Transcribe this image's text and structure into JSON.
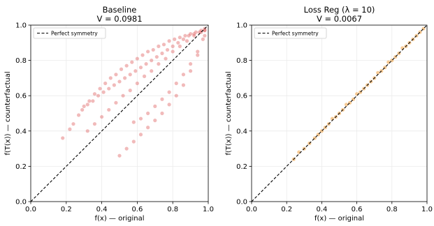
{
  "chart_data": [
    {
      "type": "scatter",
      "title": "Baseline",
      "subtitle": "V = 0.0981",
      "xlabel": "f(x)  — original",
      "ylabel": "f(T(x))  — counterfactual",
      "xlim": [
        0.0,
        1.0
      ],
      "ylim": [
        0.0,
        1.0
      ],
      "xticks": [
        "0.0",
        "0.2",
        "0.4",
        "0.6",
        "0.8",
        "1.0"
      ],
      "yticks": [
        "0.0",
        "0.2",
        "0.4",
        "0.6",
        "0.8",
        "1.0"
      ],
      "grid": true,
      "legend": {
        "position": "top-left",
        "entries": [
          "Perfect symmetry"
        ]
      },
      "reference_line": {
        "name": "Perfect symmetry",
        "style": "dashed",
        "color": "#000000",
        "x": [
          0,
          1
        ],
        "y": [
          0,
          1
        ]
      },
      "point_color": "#e06666",
      "series": [
        {
          "x": [
            0.18,
            0.22,
            0.24,
            0.27,
            0.3,
            0.33,
            0.36,
            0.39,
            0.42,
            0.45,
            0.48,
            0.51,
            0.54,
            0.57,
            0.6,
            0.63,
            0.66,
            0.69,
            0.72,
            0.75,
            0.78,
            0.81,
            0.84,
            0.87,
            0.9,
            0.93,
            0.96,
            0.98
          ],
          "y": [
            0.36,
            0.41,
            0.44,
            0.49,
            0.54,
            0.57,
            0.61,
            0.64,
            0.67,
            0.7,
            0.72,
            0.75,
            0.77,
            0.79,
            0.81,
            0.83,
            0.85,
            0.86,
            0.88,
            0.89,
            0.91,
            0.92,
            0.93,
            0.94,
            0.95,
            0.96,
            0.97,
            0.98
          ]
        },
        {
          "x": [
            0.29,
            0.32,
            0.35,
            0.38,
            0.41,
            0.44,
            0.47,
            0.5,
            0.53,
            0.56,
            0.59,
            0.62,
            0.65,
            0.68,
            0.71,
            0.74,
            0.77,
            0.8,
            0.83,
            0.86,
            0.89,
            0.92,
            0.95,
            0.98
          ],
          "y": [
            0.52,
            0.55,
            0.57,
            0.6,
            0.62,
            0.64,
            0.66,
            0.68,
            0.7,
            0.72,
            0.74,
            0.76,
            0.78,
            0.8,
            0.82,
            0.84,
            0.86,
            0.88,
            0.9,
            0.92,
            0.94,
            0.95,
            0.96,
            0.97
          ]
        },
        {
          "x": [
            0.32,
            0.36,
            0.4,
            0.44,
            0.48,
            0.52,
            0.56,
            0.6,
            0.64,
            0.68,
            0.72,
            0.76,
            0.8,
            0.84,
            0.88,
            0.92,
            0.96,
            0.98
          ],
          "y": [
            0.4,
            0.44,
            0.48,
            0.52,
            0.56,
            0.6,
            0.63,
            0.67,
            0.71,
            0.74,
            0.78,
            0.81,
            0.85,
            0.88,
            0.91,
            0.94,
            0.96,
            0.97
          ]
        },
        {
          "x": [
            0.5,
            0.54,
            0.58,
            0.62,
            0.66,
            0.7,
            0.74,
            0.78,
            0.82,
            0.86,
            0.9,
            0.94,
            0.98
          ],
          "y": [
            0.26,
            0.3,
            0.34,
            0.38,
            0.42,
            0.46,
            0.5,
            0.55,
            0.6,
            0.66,
            0.74,
            0.83,
            0.94
          ]
        },
        {
          "x": [
            0.58,
            0.62,
            0.66,
            0.7,
            0.74,
            0.78,
            0.82,
            0.86,
            0.9,
            0.94,
            0.97
          ],
          "y": [
            0.45,
            0.47,
            0.5,
            0.54,
            0.58,
            0.62,
            0.67,
            0.72,
            0.78,
            0.85,
            0.92
          ]
        }
      ]
    },
    {
      "type": "scatter",
      "title": "Loss Reg  (λ = 10)",
      "subtitle": "V = 0.0067",
      "xlabel": "f(x)  — original",
      "ylabel": "f(T(x))  — counterfactual",
      "xlim": [
        0.0,
        1.0
      ],
      "ylim": [
        0.0,
        1.0
      ],
      "xticks": [
        "0.0",
        "0.2",
        "0.4",
        "0.6",
        "0.8",
        "1.0"
      ],
      "yticks": [
        "0.0",
        "0.2",
        "0.4",
        "0.6",
        "0.8",
        "1.0"
      ],
      "grid": true,
      "legend": {
        "position": "top-left",
        "entries": [
          "Perfect symmetry"
        ]
      },
      "reference_line": {
        "name": "Perfect symmetry",
        "style": "dashed",
        "color": "#000000",
        "x": [
          0,
          1
        ],
        "y": [
          0,
          1
        ]
      },
      "point_color": "#f0a040",
      "series": [
        {
          "x": [
            0.24,
            0.27,
            0.3,
            0.33,
            0.36,
            0.38,
            0.4,
            0.42,
            0.44,
            0.46,
            0.48,
            0.5,
            0.52,
            0.54,
            0.56,
            0.58,
            0.6,
            0.62,
            0.64,
            0.66,
            0.68,
            0.7,
            0.72,
            0.74,
            0.76,
            0.78,
            0.8,
            0.82,
            0.84,
            0.86,
            0.88,
            0.9,
            0.92,
            0.94,
            0.96,
            0.98
          ],
          "y": [
            0.24,
            0.28,
            0.3,
            0.33,
            0.36,
            0.38,
            0.4,
            0.42,
            0.44,
            0.47,
            0.48,
            0.5,
            0.52,
            0.55,
            0.56,
            0.58,
            0.61,
            0.62,
            0.64,
            0.66,
            0.68,
            0.7,
            0.73,
            0.74,
            0.76,
            0.79,
            0.8,
            0.82,
            0.84,
            0.87,
            0.88,
            0.9,
            0.92,
            0.94,
            0.96,
            0.98
          ]
        }
      ]
    }
  ]
}
